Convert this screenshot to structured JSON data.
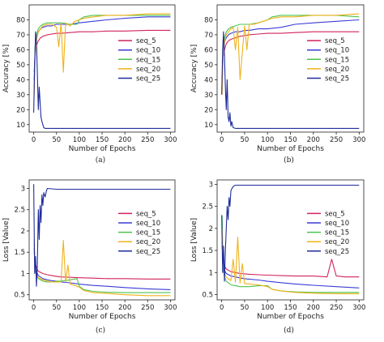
{
  "colors": {
    "seq_5": "#d1245a",
    "seq_10": "#3b3bd6",
    "seq_15": "#4cc44c",
    "seq_20": "#f0b21a",
    "seq_25": "#1f2d9c"
  },
  "chart_data": [
    {
      "type": "line",
      "caption": "(a)",
      "xlabel": "Number of Epochs",
      "ylabel": "Accuracy [%]",
      "xlim": [
        -10,
        310
      ],
      "ylim": [
        5,
        90
      ],
      "xticks": [
        0,
        50,
        100,
        150,
        200,
        250,
        300
      ],
      "yticks": [
        10,
        20,
        30,
        40,
        50,
        60,
        70,
        80
      ],
      "legend": "center-right",
      "series": [
        {
          "name": "seq_5",
          "x": [
            1,
            3,
            6,
            10,
            15,
            20,
            30,
            40,
            50,
            60,
            80,
            100,
            130,
            160,
            200,
            250,
            300
          ],
          "y": [
            45,
            58,
            63,
            66,
            68,
            69,
            70,
            70.5,
            71,
            71,
            71.5,
            72,
            72,
            72.5,
            72.5,
            73,
            73
          ]
        },
        {
          "name": "seq_10",
          "x": [
            1,
            3,
            6,
            10,
            15,
            20,
            30,
            40,
            50,
            60,
            80,
            100,
            130,
            160,
            200,
            250,
            300
          ],
          "y": [
            40,
            60,
            68,
            72,
            74,
            75,
            76,
            76,
            77,
            77,
            77,
            78,
            79,
            80,
            81,
            82,
            82
          ]
        },
        {
          "name": "seq_15",
          "x": [
            1,
            3,
            6,
            10,
            15,
            20,
            30,
            40,
            50,
            60,
            80,
            95,
            100,
            110,
            130,
            160,
            200,
            250,
            300
          ],
          "y": [
            35,
            62,
            70,
            74,
            76,
            77,
            78,
            78,
            78,
            78,
            77,
            77,
            80,
            82,
            83,
            83,
            83,
            83,
            83
          ]
        },
        {
          "name": "seq_20",
          "x": [
            1,
            3,
            6,
            10,
            15,
            20,
            30,
            40,
            50,
            55,
            60,
            65,
            70,
            80,
            90,
            100,
            110,
            130,
            160,
            200,
            250,
            300
          ],
          "y": [
            30,
            55,
            66,
            72,
            74,
            76,
            77,
            77,
            75,
            62,
            78,
            45,
            78,
            76,
            79,
            80,
            81,
            82,
            83,
            83,
            84,
            84
          ]
        },
        {
          "name": "seq_25",
          "x": [
            0,
            2,
            4,
            6,
            8,
            10,
            12,
            14,
            16,
            18,
            20,
            22,
            25,
            30,
            50,
            100,
            200,
            300
          ],
          "y": [
            18,
            50,
            72,
            65,
            45,
            20,
            35,
            25,
            15,
            12,
            10,
            8,
            7.5,
            7.5,
            7.5,
            7.5,
            7.5,
            7.5
          ]
        }
      ]
    },
    {
      "type": "line",
      "caption": "(b)",
      "xlabel": "Number of Epochs",
      "ylabel": "Accuracy [%]",
      "xlim": [
        -10,
        310
      ],
      "ylim": [
        5,
        90
      ],
      "xticks": [
        0,
        50,
        100,
        150,
        200,
        250,
        300
      ],
      "yticks": [
        10,
        20,
        30,
        40,
        50,
        60,
        70,
        80
      ],
      "legend": "center-right",
      "series": [
        {
          "name": "seq_5",
          "x": [
            1,
            3,
            6,
            10,
            15,
            20,
            30,
            40,
            50,
            60,
            80,
            100,
            130,
            160,
            200,
            250,
            300
          ],
          "y": [
            40,
            55,
            60,
            64,
            66,
            67,
            68,
            69,
            69.5,
            70,
            70.5,
            71,
            71,
            71.5,
            72,
            72,
            72
          ]
        },
        {
          "name": "seq_10",
          "x": [
            1,
            3,
            6,
            10,
            15,
            20,
            30,
            40,
            50,
            60,
            80,
            100,
            130,
            160,
            200,
            250,
            300
          ],
          "y": [
            40,
            58,
            65,
            68,
            70,
            71,
            72,
            72,
            73,
            73,
            74,
            74,
            75,
            77,
            78,
            79,
            80
          ]
        },
        {
          "name": "seq_15",
          "x": [
            1,
            3,
            6,
            10,
            15,
            20,
            30,
            40,
            50,
            60,
            80,
            100,
            110,
            130,
            160,
            200,
            250,
            300
          ],
          "y": [
            35,
            60,
            68,
            72,
            74,
            75,
            76,
            77,
            77,
            77,
            78,
            80,
            82,
            83,
            83,
            83,
            83,
            82
          ]
        },
        {
          "name": "seq_20",
          "x": [
            1,
            3,
            6,
            10,
            15,
            20,
            25,
            30,
            35,
            40,
            50,
            55,
            60,
            70,
            80,
            90,
            100,
            110,
            130,
            160,
            200,
            250,
            300
          ],
          "y": [
            30,
            55,
            65,
            70,
            72,
            74,
            75,
            60,
            75,
            40,
            76,
            60,
            77,
            77,
            78,
            79,
            80,
            81,
            82,
            82,
            83,
            83,
            84
          ]
        },
        {
          "name": "seq_25",
          "x": [
            0,
            2,
            4,
            6,
            8,
            10,
            12,
            14,
            16,
            18,
            20,
            22,
            25,
            30,
            50,
            100,
            200,
            300
          ],
          "y": [
            30,
            60,
            72,
            55,
            35,
            20,
            40,
            15,
            12,
            18,
            9,
            12,
            8,
            7.5,
            7.5,
            7.5,
            7.5,
            7.5
          ]
        }
      ]
    },
    {
      "type": "line",
      "caption": "(c)",
      "xlabel": "Number of Epochs",
      "ylabel": "Loss [Value]",
      "xlim": [
        -10,
        310
      ],
      "ylim": [
        0.38,
        3.2
      ],
      "xticks": [
        0,
        50,
        100,
        150,
        200,
        250,
        300
      ],
      "yticks": [
        0.5,
        1.0,
        1.5,
        2.0,
        2.5,
        3.0
      ],
      "legend": "center-right",
      "series": [
        {
          "name": "seq_5",
          "x": [
            1,
            3,
            6,
            10,
            20,
            30,
            40,
            50,
            60,
            80,
            100,
            130,
            160,
            200,
            250,
            300
          ],
          "y": [
            1.5,
            1.25,
            1.15,
            1.05,
            1.0,
            0.97,
            0.95,
            0.93,
            0.92,
            0.91,
            0.9,
            0.89,
            0.88,
            0.88,
            0.87,
            0.87
          ]
        },
        {
          "name": "seq_10",
          "x": [
            1,
            3,
            6,
            10,
            20,
            30,
            40,
            50,
            60,
            80,
            100,
            130,
            160,
            200,
            250,
            300
          ],
          "y": [
            1.6,
            1.2,
            1.05,
            0.95,
            0.88,
            0.85,
            0.83,
            0.82,
            0.8,
            0.78,
            0.75,
            0.72,
            0.7,
            0.67,
            0.64,
            0.62
          ]
        },
        {
          "name": "seq_15",
          "x": [
            1,
            3,
            6,
            10,
            20,
            30,
            40,
            50,
            60,
            80,
            95,
            100,
            110,
            130,
            160,
            200,
            250,
            300
          ],
          "y": [
            1.7,
            1.1,
            0.95,
            0.88,
            0.82,
            0.8,
            0.8,
            0.82,
            0.82,
            0.85,
            0.88,
            0.7,
            0.62,
            0.58,
            0.56,
            0.55,
            0.55,
            0.55
          ]
        },
        {
          "name": "seq_20",
          "x": [
            1,
            3,
            6,
            10,
            20,
            30,
            40,
            50,
            60,
            65,
            70,
            75,
            80,
            90,
            100,
            110,
            130,
            160,
            200,
            250,
            300
          ],
          "y": [
            1.8,
            1.2,
            1.0,
            0.9,
            0.85,
            0.82,
            0.8,
            0.8,
            0.8,
            1.78,
            0.8,
            1.2,
            0.75,
            0.72,
            0.68,
            0.6,
            0.55,
            0.53,
            0.5,
            0.48,
            0.48
          ]
        },
        {
          "name": "seq_25",
          "x": [
            0,
            2,
            4,
            6,
            8,
            10,
            12,
            14,
            16,
            18,
            20,
            22,
            25,
            28,
            30,
            50,
            100,
            200,
            300
          ],
          "y": [
            3.1,
            1.0,
            1.4,
            0.7,
            1.2,
            2.5,
            1.8,
            2.6,
            2.2,
            2.85,
            2.6,
            2.9,
            2.8,
            2.95,
            3.0,
            2.98,
            2.98,
            2.98,
            2.98
          ]
        }
      ]
    },
    {
      "type": "line",
      "caption": "(d)",
      "xlabel": "Number of Epochs",
      "ylabel": "Loss [Value]",
      "xlim": [
        -10,
        310
      ],
      "ylim": [
        0.38,
        3.1
      ],
      "xticks": [
        0,
        50,
        100,
        150,
        200,
        250,
        300
      ],
      "yticks": [
        0.5,
        1.0,
        1.5,
        2.0,
        2.5,
        3.0
      ],
      "legend": "center-right",
      "series": [
        {
          "name": "seq_5",
          "x": [
            1,
            3,
            6,
            10,
            20,
            30,
            40,
            50,
            60,
            80,
            100,
            130,
            160,
            200,
            230,
            240,
            250,
            270,
            300
          ],
          "y": [
            1.6,
            1.25,
            1.15,
            1.08,
            1.02,
            1.0,
            0.98,
            0.97,
            0.96,
            0.95,
            0.94,
            0.93,
            0.92,
            0.92,
            0.9,
            1.3,
            0.92,
            0.9,
            0.9
          ]
        },
        {
          "name": "seq_10",
          "x": [
            1,
            3,
            6,
            10,
            20,
            30,
            40,
            50,
            60,
            80,
            100,
            130,
            160,
            200,
            250,
            300
          ],
          "y": [
            1.7,
            1.2,
            1.05,
            0.98,
            0.92,
            0.9,
            0.88,
            0.86,
            0.85,
            0.83,
            0.8,
            0.77,
            0.74,
            0.71,
            0.68,
            0.65
          ]
        },
        {
          "name": "seq_15",
          "x": [
            1,
            3,
            6,
            10,
            20,
            30,
            40,
            50,
            60,
            80,
            100,
            110,
            130,
            160,
            200,
            250,
            300
          ],
          "y": [
            2.3,
            1.1,
            0.9,
            0.8,
            0.72,
            0.7,
            0.68,
            0.68,
            0.68,
            0.7,
            0.7,
            0.62,
            0.58,
            0.56,
            0.55,
            0.55,
            0.55
          ]
        },
        {
          "name": "seq_20",
          "x": [
            1,
            3,
            6,
            10,
            15,
            20,
            25,
            30,
            35,
            40,
            45,
            50,
            60,
            70,
            80,
            90,
            100,
            110,
            130,
            160,
            200,
            250,
            300
          ],
          "y": [
            2.0,
            1.2,
            1.0,
            0.9,
            0.85,
            0.82,
            1.3,
            0.78,
            1.8,
            0.76,
            1.2,
            0.75,
            0.74,
            0.73,
            0.72,
            0.7,
            0.68,
            0.62,
            0.58,
            0.55,
            0.53,
            0.52,
            0.52
          ]
        },
        {
          "name": "seq_25",
          "x": [
            0,
            2,
            4,
            6,
            8,
            10,
            12,
            14,
            16,
            18,
            20,
            22,
            25,
            28,
            30,
            50,
            100,
            200,
            300
          ],
          "y": [
            2.3,
            1.0,
            1.6,
            0.8,
            1.5,
            2.0,
            2.5,
            2.2,
            2.7,
            2.5,
            2.85,
            2.9,
            2.95,
            2.97,
            2.98,
            2.98,
            2.98,
            2.98,
            2.98
          ]
        }
      ]
    }
  ]
}
